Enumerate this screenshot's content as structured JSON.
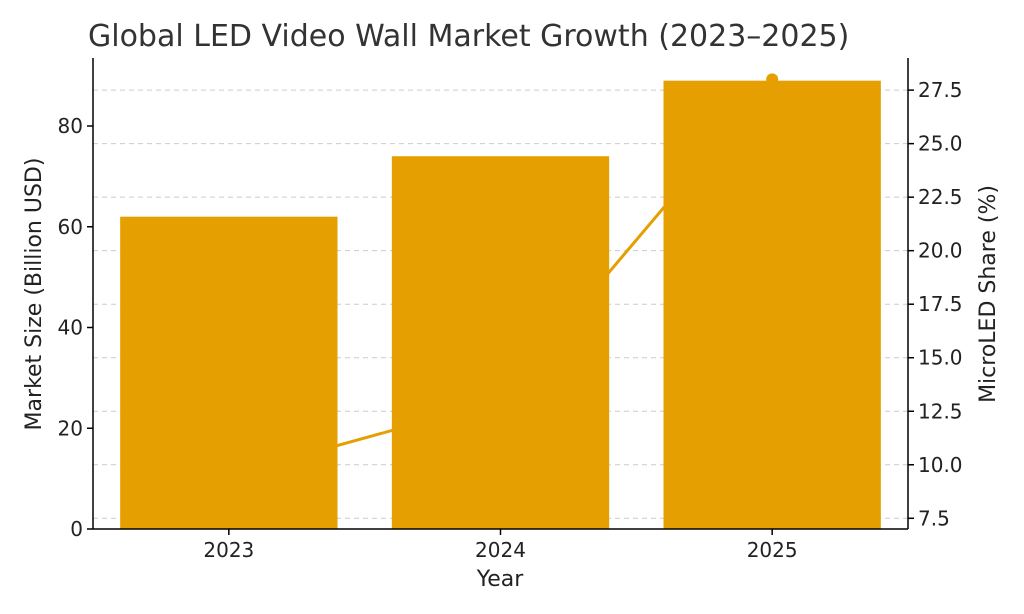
{
  "chart_data": {
    "type": "bar",
    "title": "Global LED Video Wall Market Growth (2023–2025)",
    "xlabel": "Year",
    "ylabel": "Market Size (Billion USD)",
    "y2label": "MicroLED Share (%)",
    "categories": [
      "2023",
      "2024",
      "2025"
    ],
    "series": [
      {
        "values": [
          62,
          74,
          89
        ],
        "axis": "left",
        "kind": "bar",
        "color": "#e59f00"
      },
      {
        "values": [
          9.5,
          13,
          28
        ],
        "axis": "right",
        "kind": "line",
        "color": "#e59f00"
      }
    ],
    "ylim": [
      0,
      93.5
    ],
    "y2lim": [
      7.0,
      29.0
    ],
    "yticks": [
      0,
      20,
      40,
      60,
      80
    ],
    "y2ticks": [
      7.5,
      10.0,
      12.5,
      15.0,
      17.5,
      20.0,
      22.5,
      25.0,
      27.5
    ],
    "grid": true
  }
}
